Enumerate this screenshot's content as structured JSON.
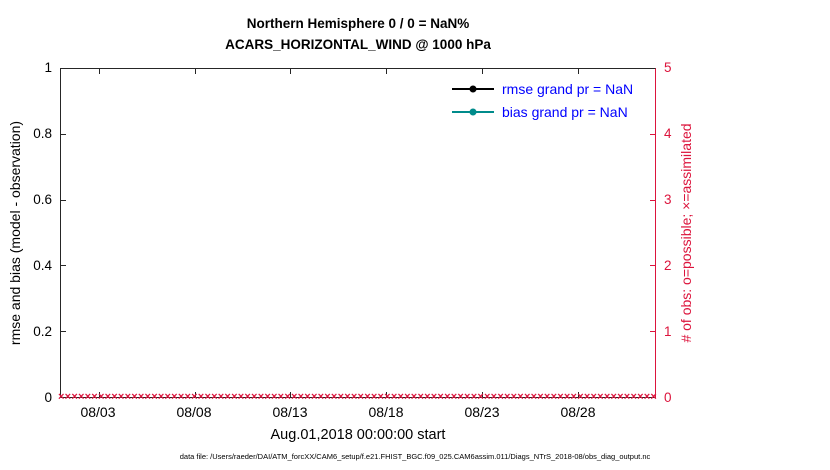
{
  "title": {
    "line1": "Northern Hemisphere 0 / 0 = NaN%",
    "line2": "ACARS_HORIZONTAL_WIND @ 1000 hPa"
  },
  "axes": {
    "left_label": "rmse and bias (model - observation)",
    "right_label": "# of obs: o=possible; ×=assimilated",
    "x_label": "Aug.01,2018 00:00:00 start",
    "left_ticks": [
      "1",
      "0.8",
      "0.6",
      "0.4",
      "0.2",
      "0"
    ],
    "right_ticks": [
      "5",
      "4",
      "3",
      "2",
      "1",
      "0"
    ],
    "x_ticks": [
      "08/03",
      "08/08",
      "08/13",
      "08/18",
      "08/23",
      "08/28"
    ]
  },
  "legend": [
    {
      "label": "rmse grand pr = NaN",
      "color": "#000000"
    },
    {
      "label": "bias grand pr = NaN",
      "color": "#008B8B"
    }
  ],
  "footer": "data file: /Users/raeder/DAI/ATM_forcXX/CAM6_setup/f.e21.FHIST_BGC.f09_025.CAM6assim.011/Diags_NTrS_2018-08/obs_diag_output.nc",
  "colors": {
    "obs_axis": "#DC143C",
    "legend_text": "#0000FF",
    "rmse": "#000000",
    "bias": "#008B8B"
  },
  "chart_data": {
    "type": "line",
    "title": "Northern Hemisphere 0 / 0 = NaN% — ACARS_HORIZONTAL_WIND @ 1000 hPa",
    "xlabel": "Aug.01,2018 00:00:00 start",
    "ylabel_left": "rmse and bias (model - observation)",
    "ylabel_right": "# of obs: o=possible; ×=assimilated",
    "xlim": [
      "2018-08-01 00:00",
      "2018-09-01 00:00"
    ],
    "ylim_left": [
      0,
      1
    ],
    "ylim_right": [
      0,
      5
    ],
    "xticklabels": [
      "08/03",
      "08/08",
      "08/13",
      "08/18",
      "08/23",
      "08/28"
    ],
    "grid": false,
    "legend_position": "upper right",
    "series": [
      {
        "name": "rmse grand pr = NaN",
        "axis": "left",
        "values": "all NaN (no line plotted)"
      },
      {
        "name": "bias grand pr = NaN",
        "axis": "left",
        "values": "all NaN (no line plotted)"
      }
    ],
    "obs_counts": {
      "description": "possible and assimilated observation counts, all zero, plotted as crimson × markers along y=0 for every time bin in August 2018",
      "possible": 0,
      "assimilated": 0,
      "marker_y": 0,
      "marker": "×",
      "count": 90
    }
  }
}
